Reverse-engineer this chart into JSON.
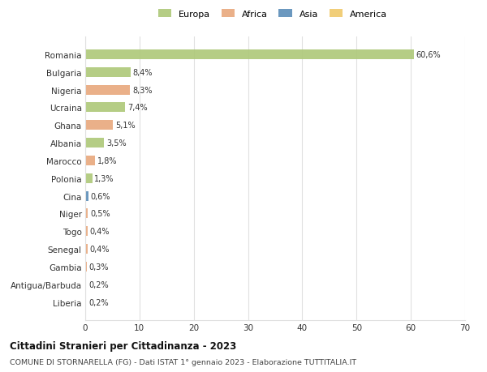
{
  "countries": [
    "Romania",
    "Bulgaria",
    "Nigeria",
    "Ucraina",
    "Ghana",
    "Albania",
    "Marocco",
    "Polonia",
    "Cina",
    "Niger",
    "Togo",
    "Senegal",
    "Gambia",
    "Antigua/Barbuda",
    "Liberia"
  ],
  "values": [
    60.6,
    8.4,
    8.3,
    7.4,
    5.1,
    3.5,
    1.8,
    1.3,
    0.6,
    0.5,
    0.4,
    0.4,
    0.3,
    0.2,
    0.2
  ],
  "labels": [
    "60,6%",
    "8,4%",
    "8,3%",
    "7,4%",
    "5,1%",
    "3,5%",
    "1,8%",
    "1,3%",
    "0,6%",
    "0,5%",
    "0,4%",
    "0,4%",
    "0,3%",
    "0,2%",
    "0,2%"
  ],
  "continents": [
    "Europa",
    "Europa",
    "Africa",
    "Europa",
    "Africa",
    "Europa",
    "Africa",
    "Europa",
    "Asia",
    "Africa",
    "Africa",
    "Africa",
    "Africa",
    "America",
    "Africa"
  ],
  "colors": {
    "Europa": "#adc878",
    "Africa": "#e8a87c",
    "Asia": "#5b8db8",
    "America": "#f0c96a"
  },
  "xlim": [
    0,
    70
  ],
  "xticks": [
    0,
    10,
    20,
    30,
    40,
    50,
    60,
    70
  ],
  "title": "Cittadini Stranieri per Cittadinanza - 2023",
  "subtitle": "COMUNE DI STORNARELLA (FG) - Dati ISTAT 1° gennaio 2023 - Elaborazione TUTTITALIA.IT",
  "background_color": "#ffffff",
  "grid_color": "#e0e0e0",
  "legend_order": [
    "Europa",
    "Africa",
    "Asia",
    "America"
  ]
}
